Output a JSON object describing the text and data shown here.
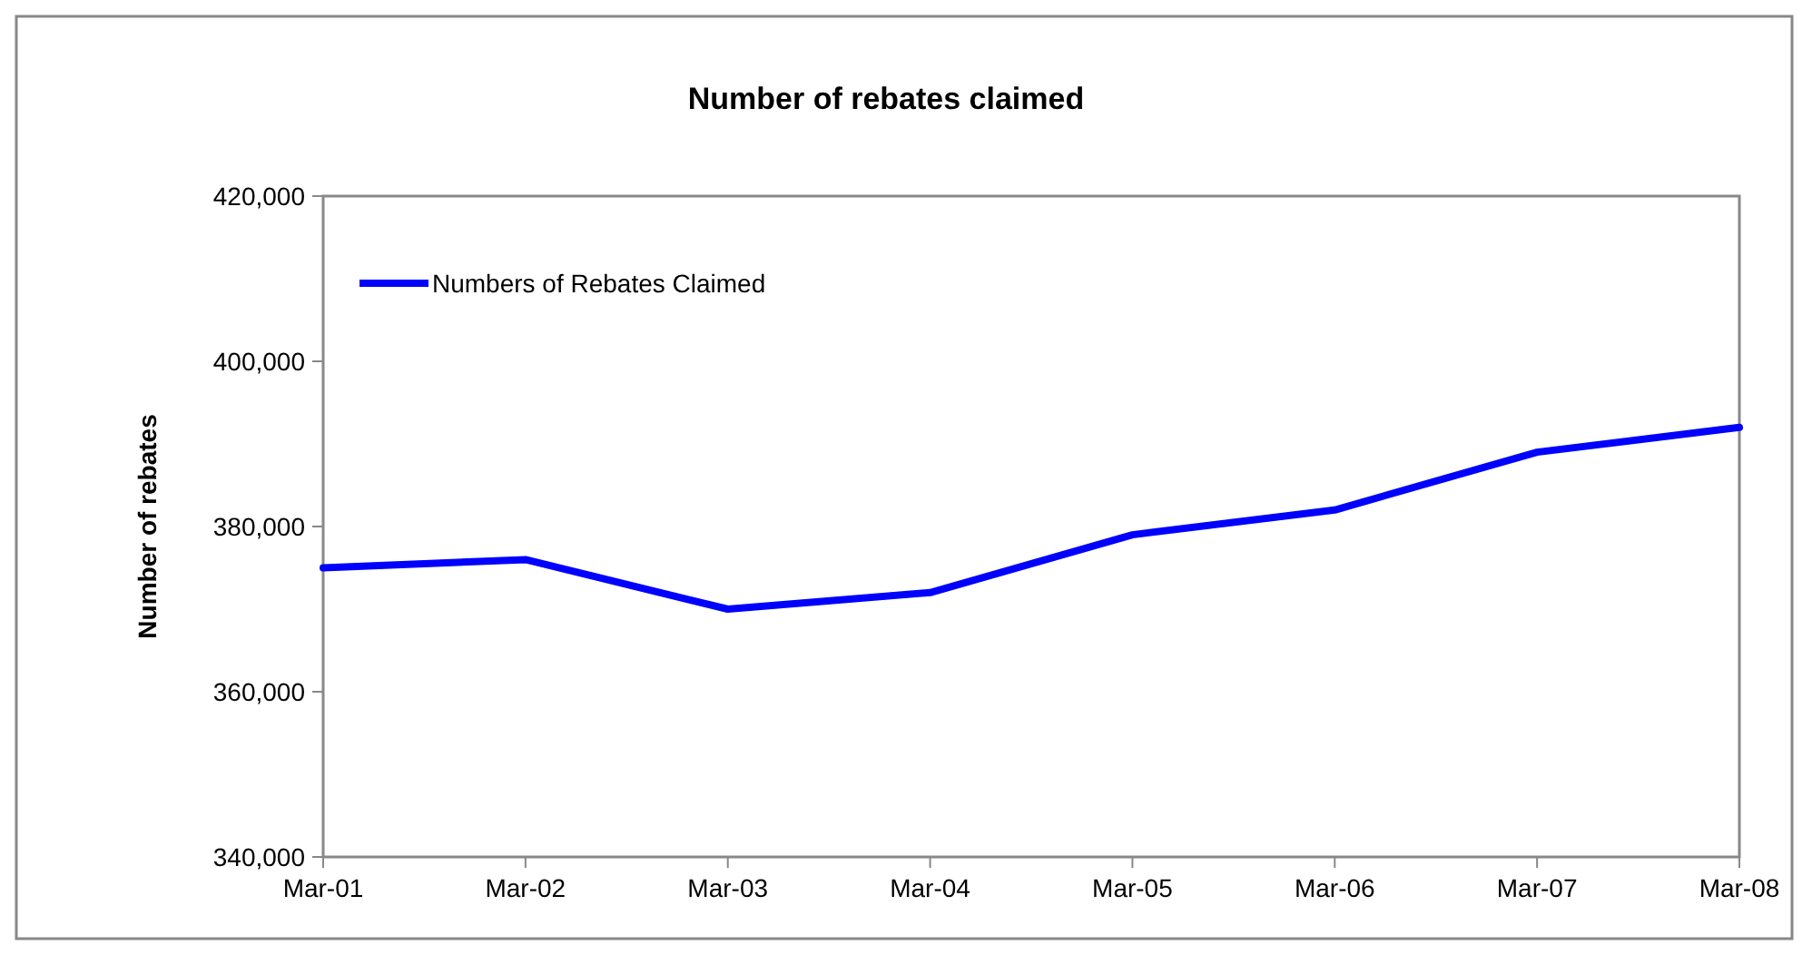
{
  "chart_data": {
    "type": "line",
    "title": "Number of rebates claimed",
    "ylabel": "Number of rebates",
    "categories": [
      "Mar-01",
      "Mar-02",
      "Mar-03",
      "Mar-04",
      "Mar-05",
      "Mar-06",
      "Mar-07",
      "Mar-08"
    ],
    "series": [
      {
        "name": "Numbers of Rebates Claimed",
        "color": "#0000ff",
        "values": [
          375000,
          376000,
          370000,
          372000,
          379000,
          382000,
          389000,
          392000
        ]
      }
    ],
    "ylim": [
      340000,
      420000
    ],
    "yticks": [
      {
        "value": 340000,
        "label": "340,000"
      },
      {
        "value": 360000,
        "label": "360,000"
      },
      {
        "value": 380000,
        "label": "380,000"
      },
      {
        "value": 400000,
        "label": "400,000"
      },
      {
        "value": 420000,
        "label": "420,000"
      }
    ],
    "grid": false,
    "legend": "top left",
    "marker": "none",
    "line_style": "solid"
  }
}
